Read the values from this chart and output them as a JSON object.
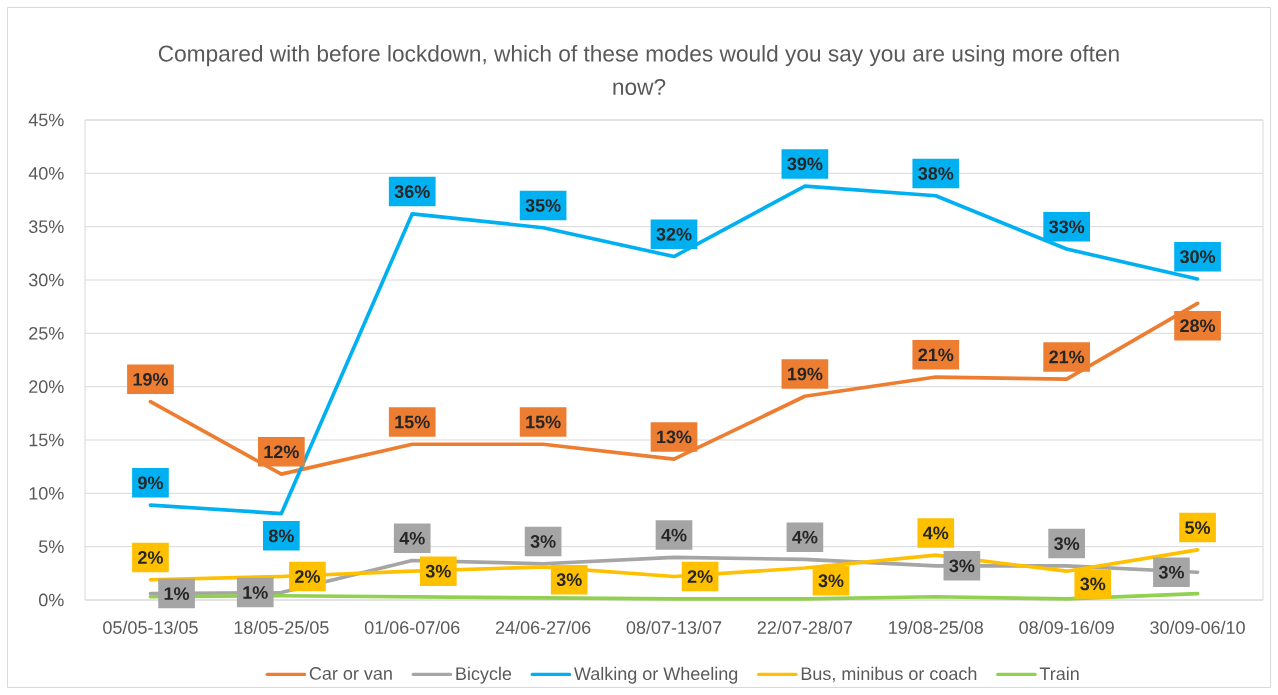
{
  "chart_data": {
    "type": "line",
    "title": "Compared with before lockdown, which of these modes would you say you are using more often now?",
    "categories": [
      "05/05-13/05",
      "18/05-25/05",
      "01/06-07/06",
      "24/06-27/06",
      "08/07-13/07",
      "22/07-28/07",
      "19/08-25/08",
      "08/09-16/09",
      "30/09-06/10"
    ],
    "series": [
      {
        "name": "Car or van",
        "color": "#ed7d31",
        "values": [
          18.6,
          11.8,
          14.6,
          14.6,
          13.2,
          19.1,
          20.9,
          20.7,
          27.8
        ],
        "value_labels": [
          "19%",
          "12%",
          "15%",
          "15%",
          "13%",
          "19%",
          "21%",
          "21%",
          "28%"
        ]
      },
      {
        "name": "Bicycle",
        "color": "#a5a5a5",
        "values": [
          0.6,
          0.7,
          3.7,
          3.4,
          4.0,
          3.8,
          3.2,
          3.2,
          2.6
        ],
        "value_labels": [
          "1%",
          "1%",
          "4%",
          "3%",
          "4%",
          "4%",
          "3%",
          "3%",
          "3%"
        ]
      },
      {
        "name": "Walking or Wheeling",
        "color": "#00b0f0",
        "values": [
          8.9,
          8.1,
          36.2,
          34.9,
          32.2,
          38.8,
          37.9,
          32.9,
          30.1
        ],
        "value_labels": [
          "9%",
          "8%",
          "36%",
          "35%",
          "32%",
          "39%",
          "38%",
          "33%",
          "30%"
        ]
      },
      {
        "name": "Bus, minibus or coach",
        "color": "#ffc000",
        "values": [
          1.9,
          2.2,
          2.7,
          3.1,
          2.2,
          3.0,
          4.2,
          2.7,
          4.7
        ],
        "value_labels": [
          "2%",
          "2%",
          "3%",
          "3%",
          "2%",
          "3%",
          "4%",
          "3%",
          "5%"
        ]
      },
      {
        "name": "Train",
        "color": "#92d050",
        "values": [
          0.3,
          0.4,
          0.3,
          0.2,
          0.1,
          0.1,
          0.3,
          0.1,
          0.6
        ]
      }
    ],
    "ylim": [
      0,
      45
    ],
    "yticks": [
      {
        "value": 0,
        "label": "0%"
      },
      {
        "value": 5,
        "label": "5%"
      },
      {
        "value": 10,
        "label": "10%"
      },
      {
        "value": 15,
        "label": "15%"
      },
      {
        "value": 20,
        "label": "20%"
      },
      {
        "value": 25,
        "label": "25%"
      },
      {
        "value": 30,
        "label": "30%"
      },
      {
        "value": 35,
        "label": "35%"
      },
      {
        "value": 40,
        "label": "40%"
      },
      {
        "value": 45,
        "label": "45%"
      }
    ],
    "grid": "y",
    "legend": "bottom",
    "marker": "none"
  }
}
